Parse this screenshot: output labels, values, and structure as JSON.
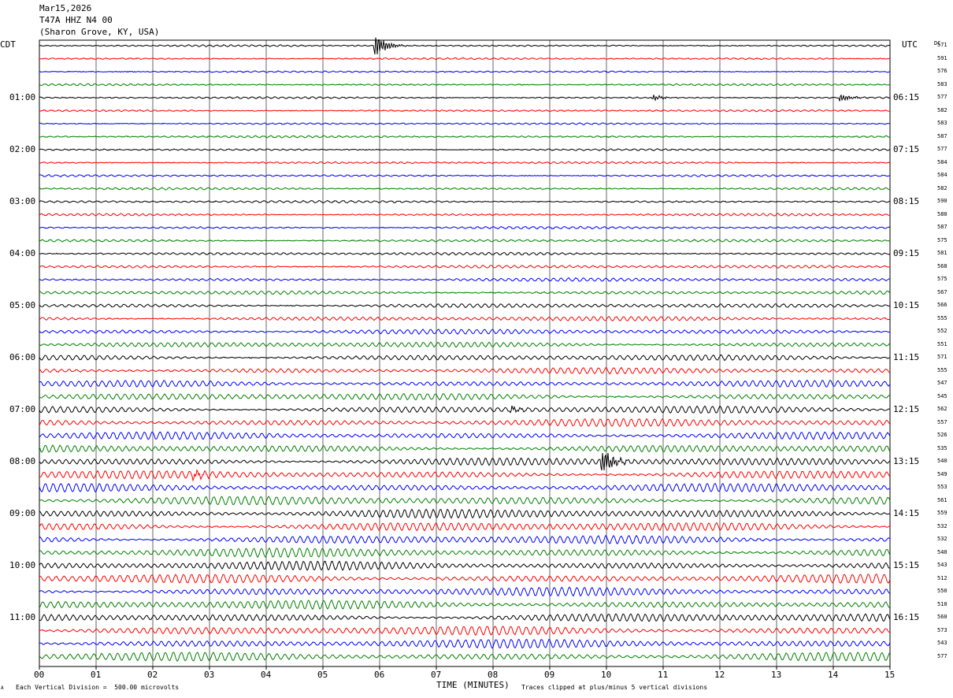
{
  "header": {
    "date": "Mar15,2026",
    "station": "T47A HHZ N4 00",
    "location": "(Sharon Grove, KY, USA)"
  },
  "left_tz": "CDT",
  "right_tz": "UTC",
  "dc_header": "DC",
  "footer": {
    "scale_note": "Each Vertical Division =  500.00 microvolts",
    "clip_note": "Traces clipped at plus/minus 5 vertical divisions",
    "corner_mark": "A"
  },
  "colors": {
    "background": "#ffffff",
    "grid": "#000000",
    "trace_cycle": [
      "#000000",
      "#ff0000",
      "#0000ff",
      "#008000"
    ]
  },
  "chart_data": {
    "type": "seismogram-helicorder",
    "xlabel": "TIME (MINUTES)",
    "x_ticks": [
      "00",
      "01",
      "02",
      "03",
      "04",
      "05",
      "06",
      "07",
      "08",
      "09",
      "10",
      "11",
      "12",
      "13",
      "14",
      "15"
    ],
    "xlim": [
      0,
      15
    ],
    "left_hour_labels": [
      "01:00",
      "02:00",
      "03:00",
      "04:00",
      "05:00",
      "06:00",
      "07:00",
      "08:00",
      "09:00",
      "10:00",
      "11:00"
    ],
    "right_hour_labels": [
      "06:15",
      "07:15",
      "08:15",
      "09:15",
      "10:15",
      "11:15",
      "12:15",
      "13:15",
      "14:15",
      "15:15",
      "16:15"
    ],
    "hour_label_rows": [
      4,
      8,
      12,
      16,
      20,
      24,
      28,
      32,
      36,
      40,
      44
    ],
    "dc_offsets": [
      571,
      591,
      576,
      583,
      577,
      582,
      583,
      587,
      577,
      584,
      584,
      582,
      590,
      580,
      587,
      575,
      581,
      568,
      575,
      567,
      566,
      555,
      552,
      551,
      571,
      555,
      547,
      545,
      562,
      557,
      526,
      535,
      540,
      549,
      553,
      561,
      559,
      532,
      532,
      540,
      543,
      512,
      550,
      510,
      560,
      573,
      543,
      577
    ],
    "trace_amplitude": [
      0.9,
      0.9,
      0.9,
      1.0,
      1.0,
      1.0,
      1.0,
      1.1,
      1.1,
      1.1,
      1.2,
      1.2,
      1.3,
      1.3,
      1.4,
      1.5,
      1.6,
      1.8,
      2.0,
      2.2,
      2.5,
      2.8,
      3.0,
      3.2,
      3.5,
      3.8,
      4.0,
      4.2,
      4.5,
      4.8,
      4.6,
      4.8,
      5.0,
      5.0,
      5.2,
      5.4,
      5.6,
      5.6,
      5.5,
      5.6,
      5.5,
      5.6,
      5.4,
      5.6,
      5.4,
      5.6,
      5.5,
      5.4
    ],
    "events": [
      {
        "row": 0,
        "minute": 5.9,
        "size": 18
      },
      {
        "row": 4,
        "minute": 14.1,
        "size": 6
      },
      {
        "row": 4,
        "minute": 10.8,
        "size": 4
      },
      {
        "row": 28,
        "minute": 8.3,
        "size": 5
      },
      {
        "row": 32,
        "minute": 9.9,
        "size": 20
      },
      {
        "row": 33,
        "minute": 2.7,
        "size": 5
      }
    ]
  }
}
